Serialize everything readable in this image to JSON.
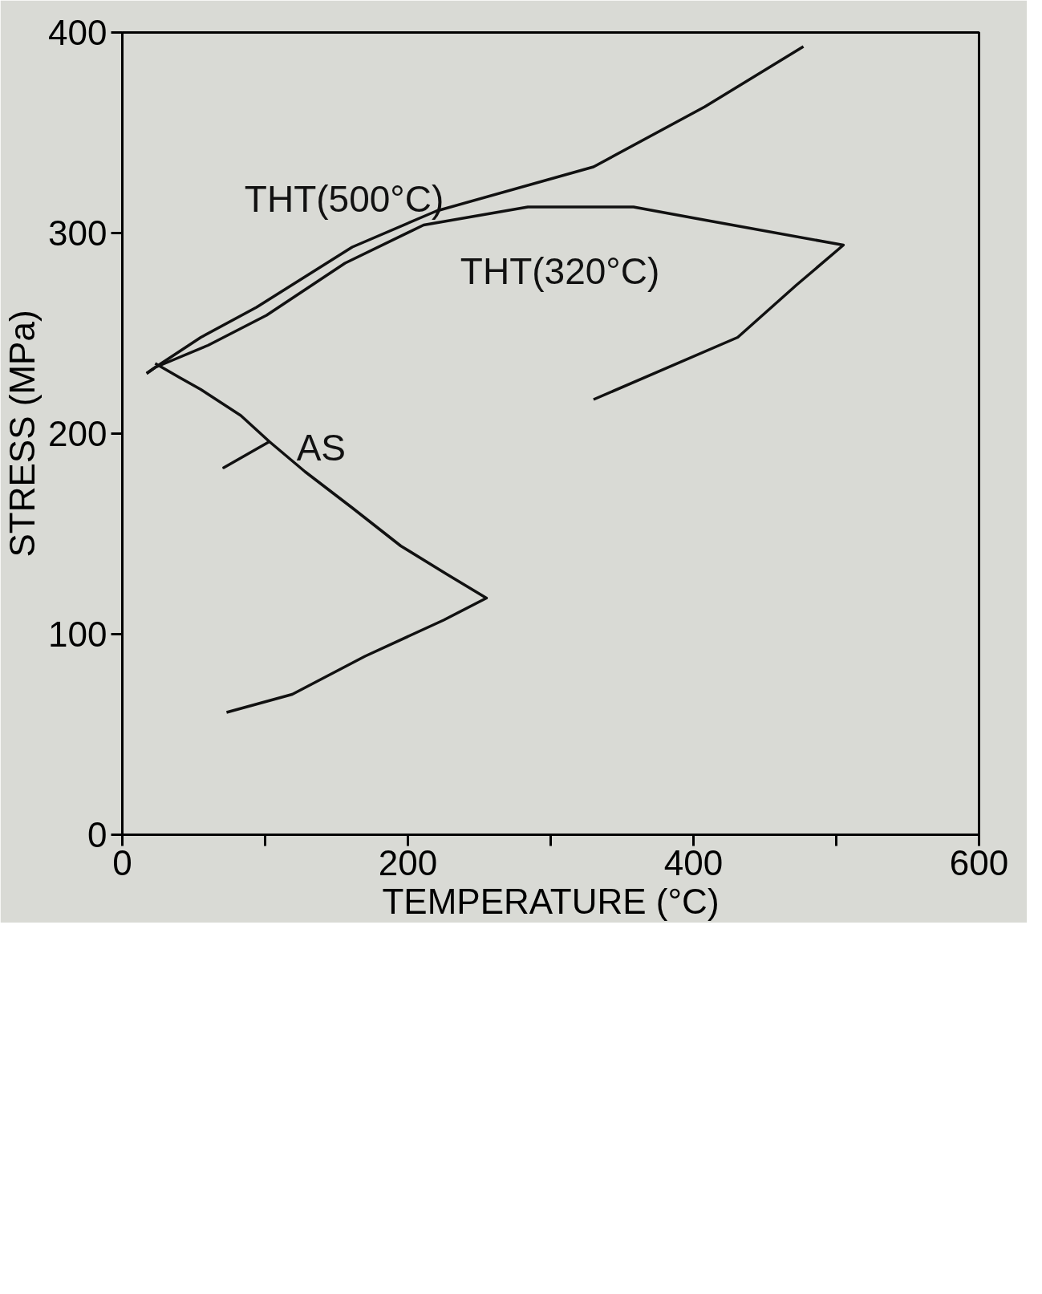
{
  "chart_data": {
    "type": "line",
    "xlabel": "TEMPERATURE (°C)",
    "ylabel": "STRESS (MPa)",
    "xlim": [
      0,
      600
    ],
    "ylim": [
      0,
      400
    ],
    "xticks": [
      0,
      {
        "value": 100,
        "label": null
      },
      200,
      {
        "value": 300,
        "label": null
      },
      400,
      {
        "value": 500,
        "label": null
      },
      600
    ],
    "yticks": [
      0,
      100,
      200,
      300,
      400
    ],
    "grid": false,
    "line_style": "solid",
    "series": [
      {
        "name": "AS",
        "color": "#111111",
        "x": [
          23,
          40,
          55,
          83,
          103,
          71,
          103,
          128,
          161,
          195,
          227,
          255,
          225,
          170,
          119,
          73
        ],
        "values": [
          235,
          228,
          222,
          209,
          196,
          183,
          196,
          181,
          163,
          144,
          130,
          118,
          107,
          89,
          70,
          61
        ]
      },
      {
        "name": "THT(500°C)",
        "color": "#111111",
        "x": [
          17,
          23,
          55,
          94,
          161,
          220,
          330,
          408,
          477
        ],
        "values": [
          230,
          233,
          248,
          263,
          293,
          311,
          333,
          363,
          393
        ]
      },
      {
        "name": "THT(320°C)",
        "color": "#111111",
        "x": [
          17,
          23,
          60,
          101,
          156,
          211,
          284,
          358,
          404,
          505,
          472,
          431,
          330
        ],
        "values": [
          230,
          233,
          244,
          259,
          285,
          304,
          313,
          313,
          307,
          294,
          274,
          248,
          217
        ]
      }
    ]
  }
}
